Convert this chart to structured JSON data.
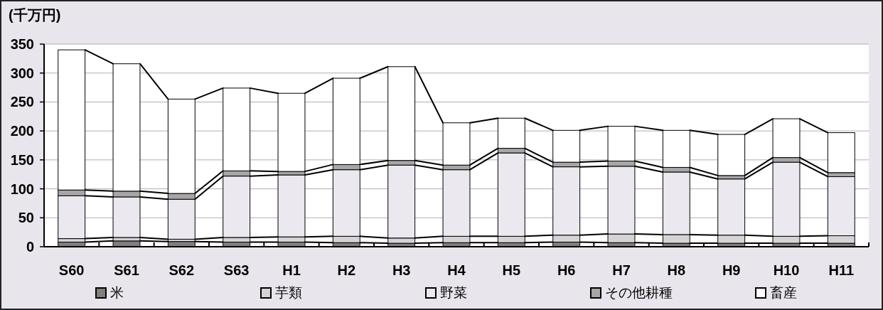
{
  "chart_data": {
    "type": "bar",
    "stacked": true,
    "ylabel": "(千万円)",
    "categories": [
      "S60",
      "S61",
      "S62",
      "S63",
      "H1",
      "H2",
      "H3",
      "H4",
      "H5",
      "H6",
      "H7",
      "H8",
      "H9",
      "H10",
      "H11"
    ],
    "series": [
      {
        "name": "米",
        "color": "#7f7f7f",
        "values": [
          8,
          10,
          9,
          8,
          8,
          7,
          6,
          7,
          7,
          8,
          7,
          6,
          6,
          6,
          6
        ]
      },
      {
        "name": "芋類",
        "color": "#d4d4d4",
        "values": [
          6,
          6,
          4,
          8,
          9,
          11,
          9,
          11,
          11,
          12,
          15,
          15,
          14,
          12,
          13
        ]
      },
      {
        "name": "野菜",
        "color": "#ece8f0",
        "values": [
          74,
          70,
          69,
          106,
          107,
          115,
          126,
          115,
          144,
          118,
          117,
          108,
          97,
          128,
          102
        ]
      },
      {
        "name": "その他耕種",
        "color": "#a6a6a6",
        "values": [
          10,
          10,
          10,
          9,
          6,
          9,
          8,
          8,
          8,
          8,
          9,
          8,
          6,
          8,
          7
        ]
      },
      {
        "name": "畜産",
        "color": "#ffffff",
        "values": [
          242,
          220,
          163,
          143,
          135,
          149,
          162,
          73,
          52,
          55,
          60,
          64,
          71,
          67,
          69
        ]
      }
    ],
    "ylim": [
      0,
      350
    ],
    "yticks": [
      0,
      50,
      100,
      150,
      200,
      250,
      300,
      350
    ],
    "grid": "y",
    "legend": "bottom"
  }
}
